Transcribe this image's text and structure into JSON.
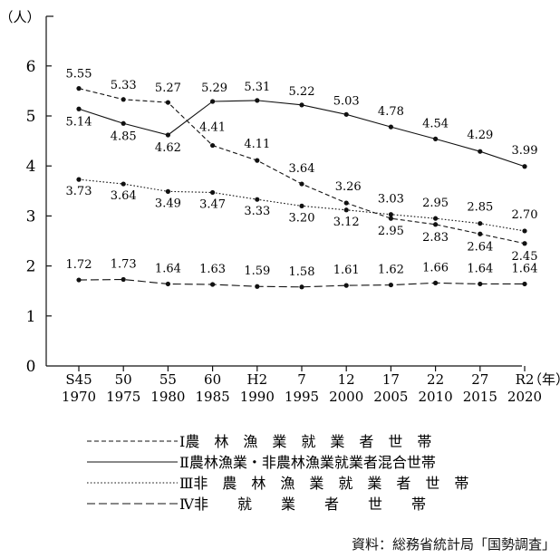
{
  "chart_data": {
    "type": "line",
    "y_unit": "（人）",
    "x_unit": "（年）",
    "ylim": [
      0,
      6.5
    ],
    "yticks": [
      "0",
      "1",
      "2",
      "3",
      "4",
      "5",
      "6"
    ],
    "categories": [
      {
        "era": "S45",
        "year": "1970"
      },
      {
        "era": "50",
        "year": "1975"
      },
      {
        "era": "55",
        "year": "1980"
      },
      {
        "era": "60",
        "year": "1985"
      },
      {
        "era": "H2",
        "year": "1990"
      },
      {
        "era": "7",
        "year": "1995"
      },
      {
        "era": "12",
        "year": "2000"
      },
      {
        "era": "17",
        "year": "2005"
      },
      {
        "era": "22",
        "year": "2010"
      },
      {
        "era": "27",
        "year": "2015"
      },
      {
        "era": "R2",
        "year": "2020"
      }
    ],
    "series": [
      {
        "name": "Ⅰ農　林　漁　業　就　業　者　世　帯",
        "style": "dashed-short",
        "values": [
          5.55,
          5.33,
          5.27,
          4.41,
          4.11,
          3.64,
          3.26,
          2.95,
          2.83,
          2.64,
          2.45
        ],
        "labels": [
          "5.55",
          "5.33",
          "5.27",
          "4.41",
          "4.11",
          "3.64",
          "3.26",
          "2.95",
          "2.83",
          "2.64",
          "2.45"
        ]
      },
      {
        "name": "Ⅱ農林漁業・非農林漁業就業者混合世帯",
        "style": "solid",
        "values": [
          5.14,
          4.85,
          4.62,
          5.29,
          5.31,
          5.22,
          5.03,
          4.78,
          4.54,
          4.29,
          3.99
        ],
        "labels": [
          "5.14",
          "4.85",
          "4.62",
          "5.29",
          "5.31",
          "5.22",
          "5.03",
          "4.78",
          "4.54",
          "4.29",
          "3.99"
        ]
      },
      {
        "name": "Ⅲ非　農　林　漁　業　就　業　者　世　帯",
        "style": "dotted",
        "values": [
          3.73,
          3.64,
          3.49,
          3.47,
          3.33,
          3.2,
          3.12,
          3.03,
          2.95,
          2.85,
          2.7
        ],
        "labels": [
          "3.73",
          "3.64",
          "3.49",
          "3.47",
          "3.33",
          "3.20",
          "3.12",
          "3.03",
          "2.95",
          "2.85",
          "2.70"
        ]
      },
      {
        "name": "Ⅳ非　　就　　業　　者　　世　　帯",
        "style": "dashed-long",
        "values": [
          1.72,
          1.73,
          1.64,
          1.63,
          1.59,
          1.58,
          1.61,
          1.62,
          1.66,
          1.64,
          1.64
        ],
        "labels": [
          "1.72",
          "1.73",
          "1.64",
          "1.63",
          "1.59",
          "1.58",
          "1.61",
          "1.62",
          "1.66",
          "1.64",
          "1.64"
        ]
      }
    ],
    "grid": false,
    "legend_position": "bottom",
    "source": "資料：総務省統計局「国勢調査」"
  }
}
